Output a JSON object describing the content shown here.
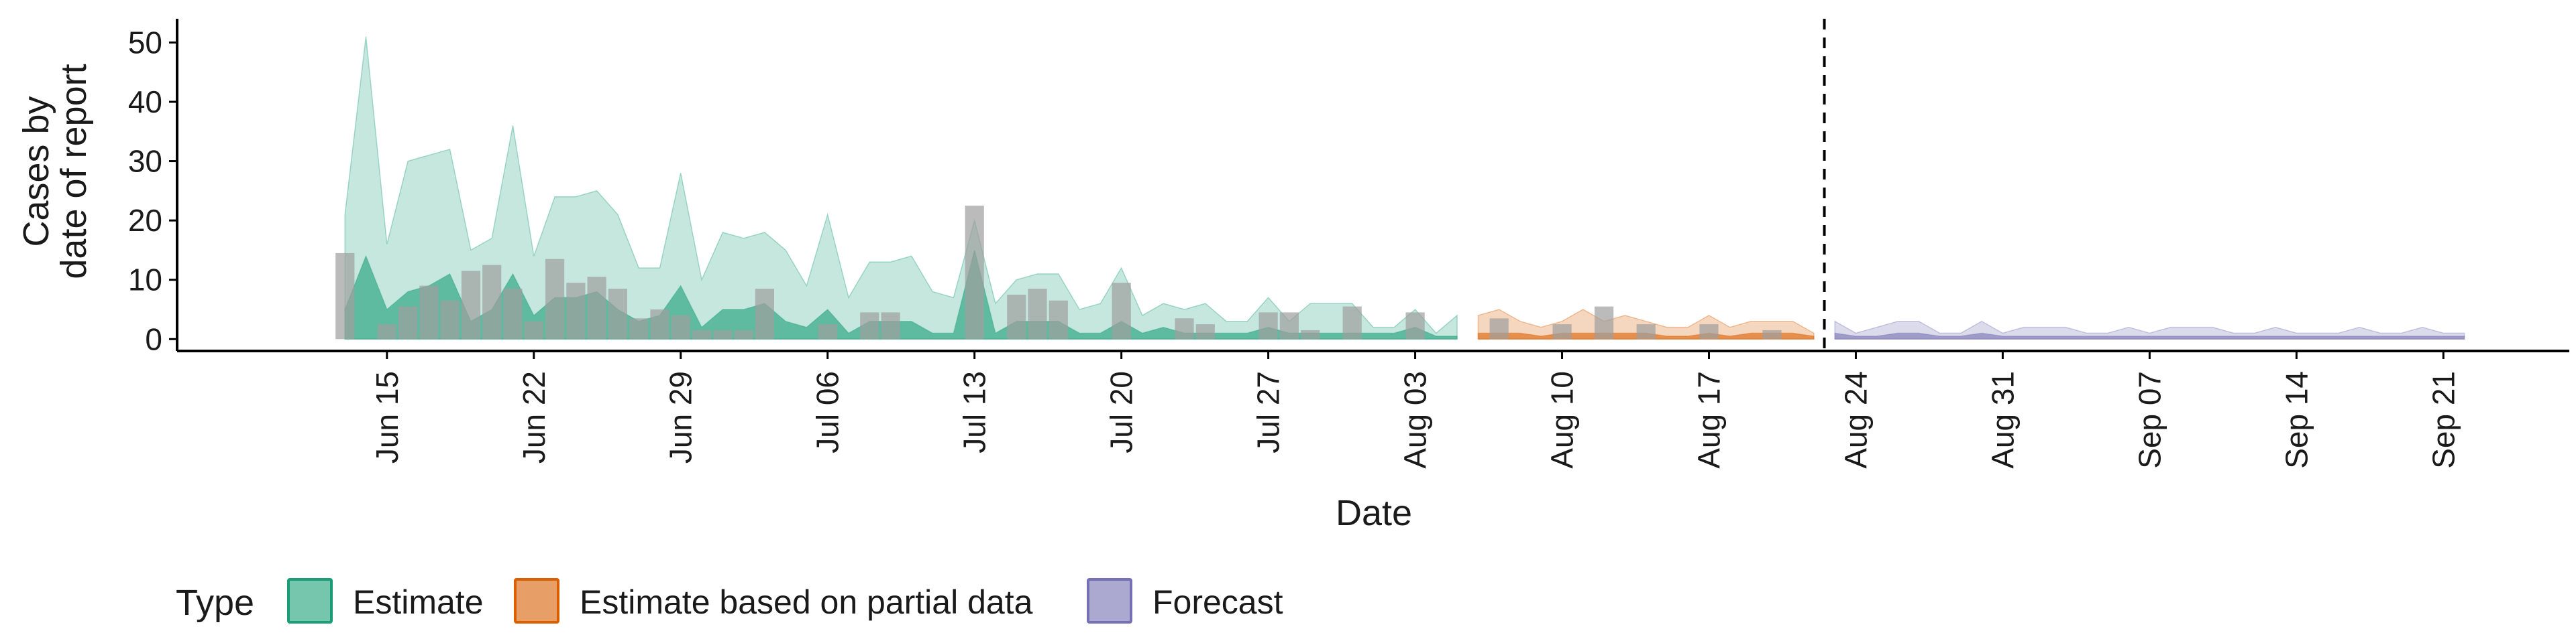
{
  "chart_data": {
    "type": "area",
    "xlabel": "Date",
    "ylabel_lines": [
      "Cases by",
      "date of report"
    ],
    "ylim": [
      -2,
      54
    ],
    "xlim": [
      "2020-06-05",
      "2020-09-27"
    ],
    "y_ticks": [
      0,
      10,
      20,
      30,
      40,
      50
    ],
    "x_ticks": [
      {
        "date": "2020-06-15",
        "label": "Jun 15"
      },
      {
        "date": "2020-06-22",
        "label": "Jun 22"
      },
      {
        "date": "2020-06-29",
        "label": "Jun 29"
      },
      {
        "date": "2020-07-06",
        "label": "Jul 06"
      },
      {
        "date": "2020-07-13",
        "label": "Jul 13"
      },
      {
        "date": "2020-07-20",
        "label": "Jul 20"
      },
      {
        "date": "2020-07-27",
        "label": "Jul 27"
      },
      {
        "date": "2020-08-03",
        "label": "Aug 03"
      },
      {
        "date": "2020-08-10",
        "label": "Aug 10"
      },
      {
        "date": "2020-08-17",
        "label": "Aug 17"
      },
      {
        "date": "2020-08-24",
        "label": "Aug 24"
      },
      {
        "date": "2020-08-31",
        "label": "Aug 31"
      },
      {
        "date": "2020-09-07",
        "label": "Sep 07"
      },
      {
        "date": "2020-09-14",
        "label": "Sep 14"
      },
      {
        "date": "2020-09-21",
        "label": "Sep 21"
      }
    ],
    "forecast_date": "2020-08-22",
    "legend": {
      "title": "Type",
      "position": "bottom-left",
      "items": [
        {
          "label": "Estimate",
          "fill": "#1b9e77",
          "stroke": "#1b9e77"
        },
        {
          "label": "Estimate based on partial data",
          "fill": "#d95f02",
          "stroke": "#d95f02"
        },
        {
          "label": "Forecast",
          "fill": "#7570b3",
          "stroke": "#7570b3"
        }
      ]
    },
    "reported_cases": {
      "color": "#9e9e9e",
      "dates": [
        "2020-06-13",
        "2020-06-15",
        "2020-06-16",
        "2020-06-17",
        "2020-06-18",
        "2020-06-19",
        "2020-06-20",
        "2020-06-21",
        "2020-06-22",
        "2020-06-23",
        "2020-06-24",
        "2020-06-25",
        "2020-06-26",
        "2020-06-27",
        "2020-06-28",
        "2020-06-29",
        "2020-06-30",
        "2020-07-01",
        "2020-07-02",
        "2020-07-03",
        "2020-07-06",
        "2020-07-08",
        "2020-07-09",
        "2020-07-13",
        "2020-07-15",
        "2020-07-16",
        "2020-07-17",
        "2020-07-20",
        "2020-07-23",
        "2020-07-24",
        "2020-07-27",
        "2020-07-28",
        "2020-07-29",
        "2020-07-31",
        "2020-08-03",
        "2020-08-07",
        "2020-08-10",
        "2020-08-12",
        "2020-08-14",
        "2020-08-17",
        "2020-08-20"
      ],
      "values": [
        14.5,
        2.5,
        5.5,
        9,
        6.5,
        11.5,
        12.5,
        8.5,
        3,
        13.5,
        9.5,
        10.5,
        8.5,
        3.5,
        5,
        4,
        1.5,
        1.5,
        1.5,
        8.5,
        2.5,
        4.5,
        4.5,
        22.5,
        7.5,
        8.5,
        6.5,
        9.5,
        3.5,
        2.5,
        4.5,
        4.5,
        1.5,
        5.5,
        4.5,
        3.5,
        2.5,
        5.5,
        2.5,
        2.5,
        1.5
      ]
    },
    "series": [
      {
        "name": "Estimate",
        "color": "#1b9e77",
        "dates": [
          "2020-06-13",
          "2020-06-14",
          "2020-06-15",
          "2020-06-16",
          "2020-06-17",
          "2020-06-18",
          "2020-06-19",
          "2020-06-20",
          "2020-06-21",
          "2020-06-22",
          "2020-06-23",
          "2020-06-24",
          "2020-06-25",
          "2020-06-26",
          "2020-06-27",
          "2020-06-28",
          "2020-06-29",
          "2020-06-30",
          "2020-07-01",
          "2020-07-02",
          "2020-07-03",
          "2020-07-04",
          "2020-07-05",
          "2020-07-06",
          "2020-07-07",
          "2020-07-08",
          "2020-07-09",
          "2020-07-10",
          "2020-07-11",
          "2020-07-12",
          "2020-07-13",
          "2020-07-14",
          "2020-07-15",
          "2020-07-16",
          "2020-07-17",
          "2020-07-18",
          "2020-07-19",
          "2020-07-20",
          "2020-07-21",
          "2020-07-22",
          "2020-07-23",
          "2020-07-24",
          "2020-07-25",
          "2020-07-26",
          "2020-07-27",
          "2020-07-28",
          "2020-07-29",
          "2020-07-30",
          "2020-07-31",
          "2020-08-01",
          "2020-08-02",
          "2020-08-03",
          "2020-08-04",
          "2020-08-05"
        ],
        "upper_90": [
          21,
          51,
          16,
          30,
          31,
          32,
          15,
          17,
          36,
          14,
          24,
          24,
          25,
          21,
          12,
          12,
          28,
          10,
          18,
          17,
          18,
          15,
          9,
          21,
          7,
          13,
          13,
          14,
          8,
          7,
          20,
          6,
          10,
          11,
          11,
          5,
          6,
          12,
          4,
          6,
          5,
          6,
          3,
          3,
          7,
          3,
          6,
          6,
          6,
          2,
          2,
          5,
          1,
          4
        ],
        "upper_50": [
          5,
          14,
          5,
          8,
          9,
          11,
          3,
          5,
          11,
          4,
          7,
          7,
          8,
          5,
          3,
          4,
          9,
          2,
          5,
          5,
          6,
          3,
          2,
          5,
          1,
          3,
          3,
          3,
          1,
          1,
          15,
          1,
          3,
          3,
          3,
          1,
          1,
          3,
          1,
          2,
          1,
          1,
          1,
          1,
          2,
          1,
          1,
          1,
          1,
          1,
          1,
          2,
          0.5,
          0.5
        ]
      },
      {
        "name": "Estimate based on partial data",
        "color": "#d95f02",
        "dates": [
          "2020-08-06",
          "2020-08-07",
          "2020-08-08",
          "2020-08-09",
          "2020-08-10",
          "2020-08-11",
          "2020-08-12",
          "2020-08-13",
          "2020-08-14",
          "2020-08-15",
          "2020-08-16",
          "2020-08-17",
          "2020-08-18",
          "2020-08-19",
          "2020-08-20",
          "2020-08-21",
          "2020-08-22"
        ],
        "upper_90": [
          4,
          5,
          3,
          2,
          3,
          5,
          3,
          4,
          3,
          2,
          2,
          4,
          2,
          3,
          3,
          3,
          1
        ],
        "upper_50": [
          1,
          1,
          1,
          0.5,
          1,
          1,
          1,
          1,
          1,
          0.5,
          0.5,
          1,
          0.5,
          1,
          1,
          1,
          0.5
        ]
      },
      {
        "name": "Forecast",
        "color": "#7570b3",
        "dates": [
          "2020-08-23",
          "2020-08-24",
          "2020-08-25",
          "2020-08-26",
          "2020-08-27",
          "2020-08-28",
          "2020-08-29",
          "2020-08-30",
          "2020-08-31",
          "2020-09-01",
          "2020-09-02",
          "2020-09-03",
          "2020-09-04",
          "2020-09-05",
          "2020-09-06",
          "2020-09-07",
          "2020-09-08",
          "2020-09-09",
          "2020-09-10",
          "2020-09-11",
          "2020-09-12",
          "2020-09-13",
          "2020-09-14",
          "2020-09-15",
          "2020-09-16",
          "2020-09-17",
          "2020-09-18",
          "2020-09-19",
          "2020-09-20",
          "2020-09-21",
          "2020-09-22"
        ],
        "upper_90": [
          3,
          1,
          2,
          3,
          3,
          1,
          1,
          3,
          1,
          2,
          2,
          2,
          1,
          1,
          2,
          1,
          2,
          2,
          2,
          1,
          1,
          2,
          1,
          1,
          1,
          2,
          1,
          1,
          2,
          1,
          1
        ],
        "upper_50": [
          1,
          0.5,
          0.5,
          1,
          1,
          0.5,
          0.5,
          1,
          0.5,
          0.5,
          0.5,
          0.5,
          0.5,
          0.5,
          0.5,
          0.5,
          0.5,
          0.5,
          0.5,
          0.5,
          0.5,
          0.5,
          0.5,
          0.5,
          0.5,
          0.5,
          0.5,
          0.5,
          0.5,
          0.5,
          0.5
        ]
      }
    ]
  }
}
